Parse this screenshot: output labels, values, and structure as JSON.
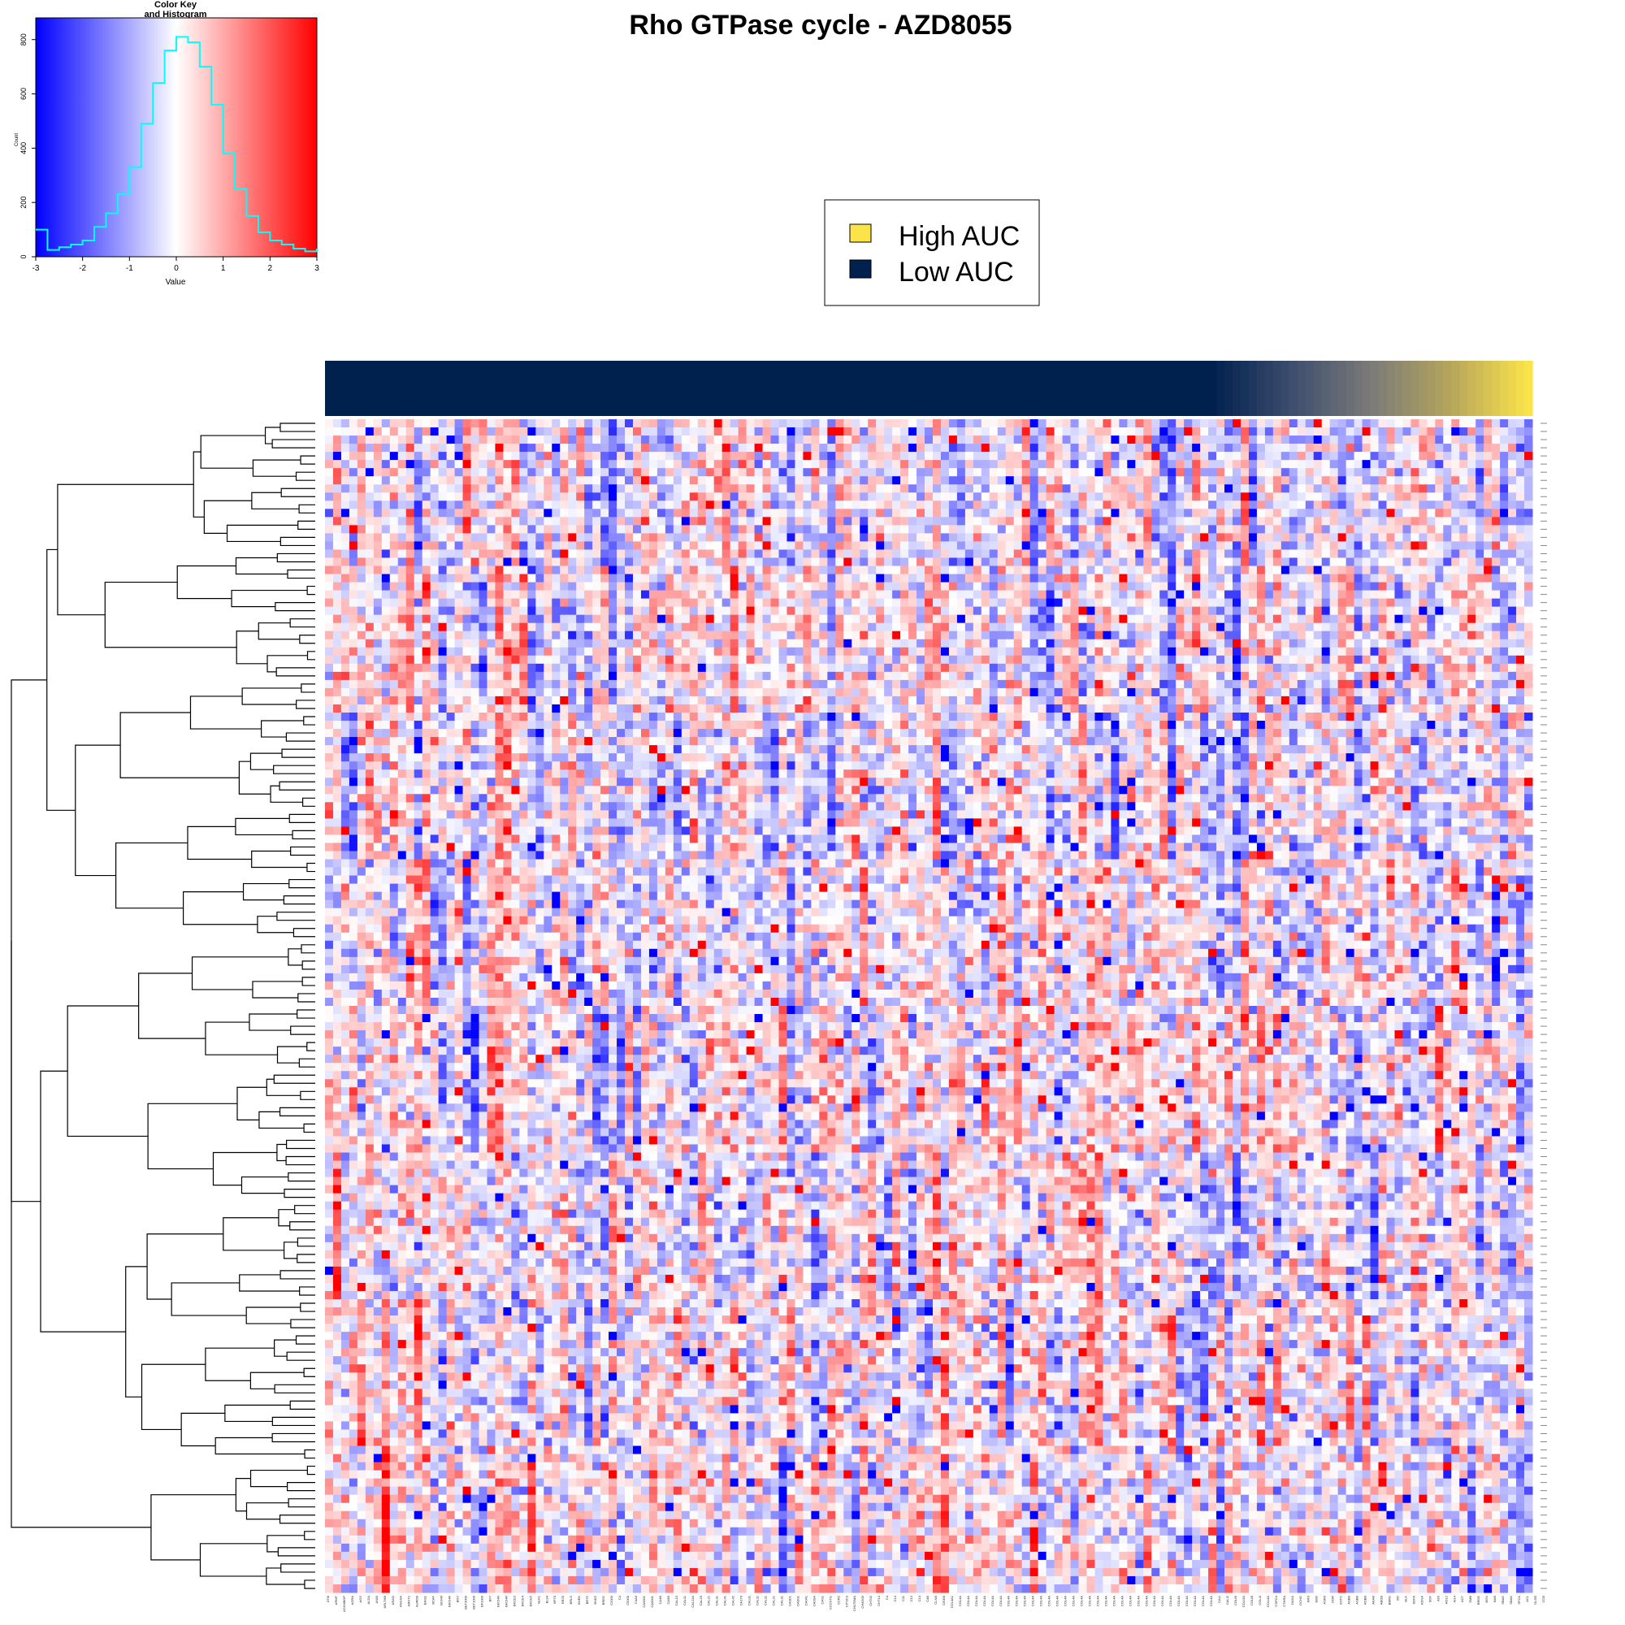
{
  "chart_data": {
    "type": "heatmap",
    "title": "Rho GTPase cycle - AZD8055",
    "color_key": {
      "title_line1": "Color Key",
      "title_line2": "and Histogram",
      "xlabel": "Value",
      "ylabel": "Count",
      "x_ticks": [
        "-3",
        "-2",
        "-1",
        "0",
        "1",
        "2",
        "3"
      ],
      "y_ticks": [
        "0",
        "200",
        "400",
        "600",
        "800"
      ],
      "xlim": [
        -3,
        3
      ],
      "ylim": [
        0,
        880
      ],
      "colors": {
        "low": "#0000ff",
        "mid": "#ffffff",
        "high": "#ff0000",
        "histogram": "#00ffff"
      },
      "histogram": {
        "x": [
          -3.0,
          -2.75,
          -2.5,
          -2.25,
          -2.0,
          -1.75,
          -1.5,
          -1.25,
          -1.0,
          -0.75,
          -0.5,
          -0.25,
          0.0,
          0.25,
          0.5,
          0.75,
          1.0,
          1.25,
          1.5,
          1.75,
          2.0,
          2.25,
          2.5,
          2.75,
          3.0
        ],
        "counts": [
          100,
          25,
          35,
          45,
          60,
          110,
          160,
          230,
          330,
          490,
          640,
          760,
          810,
          790,
          700,
          560,
          380,
          250,
          150,
          90,
          60,
          45,
          30,
          20,
          30
        ]
      }
    },
    "legend": {
      "placement": "top-center",
      "entries": [
        {
          "label": "High AUC",
          "color": "#fbe34a"
        },
        {
          "label": "Low AUC",
          "color": "#00204d"
        }
      ]
    },
    "annotation_bar": {
      "n_low_blocks": 110,
      "gradient_colors": [
        "#00204d",
        "#3d4d6e",
        "#7a7a78",
        "#b5a45c",
        "#fbe34a"
      ]
    },
    "heatmap": {
      "n_rows": 144,
      "n_cols": 149,
      "value_range": [
        -3,
        3
      ],
      "seed": 8055,
      "row_dendrogram": true,
      "col_labels": [
        "ATM",
        "ARMT",
        "ACKMBOP",
        "AGRA",
        "AGS",
        "ALDA",
        "ANBI",
        "ARLTHB",
        "ARAO",
        "ANGSA",
        "ARNT1",
        "AURDB",
        "BAGE",
        "BCAF",
        "BCHM",
        "BKCHR",
        "BDV",
        "BET3000",
        "BET1000",
        "BF1000",
        "BF7",
        "BKCHR",
        "BKCHR",
        "BKCE3",
        "BKCE4",
        "BKCE5",
        "BLK1",
        "BL94",
        "BP70",
        "BR20",
        "BRLS",
        "BNEK",
        "BRTZ",
        "BNEZ",
        "BREG",
        "C2000",
        "C4",
        "C5000",
        "C4A0",
        "CA0001",
        "CA5001",
        "CA4B",
        "CA5B",
        "CAL10",
        "CAL11",
        "CAL11A",
        "CAL20",
        "CAL21",
        "CAL31",
        "CAL41",
        "CAL42",
        "CA170",
        "CAL01",
        "CAL11",
        "CAL11",
        "CAL21",
        "CAL31",
        "CA0D1",
        "CAD01",
        "CA041",
        "CA0SA",
        "CAS1",
        "CCCNTG",
        "CCR2",
        "CITSC3",
        "CH17DMA",
        "CH4G09",
        "CHT02",
        "CHT14",
        "C4",
        "C14",
        "C11",
        "C13",
        "C14",
        "C4B",
        "CLNB",
        "C5000",
        "COL4A1",
        "COL4A",
        "COL4A",
        "COL4A",
        "COL4A",
        "COL4A",
        "COL4A",
        "COL4A",
        "COL4A",
        "COL4A",
        "COL4A",
        "COL4A",
        "COL4A",
        "COL4A",
        "COL4A",
        "COL4A",
        "COL4A",
        "COL4A",
        "COL4A",
        "COL4A",
        "COL4A",
        "COL4A",
        "COL4A",
        "COL4A",
        "COL4A",
        "COL4A",
        "COL4A",
        "COL4A",
        "COL4A",
        "COL4A",
        "COL4A",
        "COL4A",
        "COL4A",
        "CALI",
        "CALI2",
        "COLIB",
        "COLI3A",
        "COLIB",
        "COLI4",
        "COLI4A",
        "CSPG4",
        "CTHRA",
        "DAXA",
        "DCHG",
        "KRS",
        "EBO",
        "ASR0",
        "DOR",
        "ESTC",
        "ASBB",
        "ASBB",
        "AOBB",
        "AKAB",
        "ABOB",
        "BBRG",
        "BO",
        "BLK",
        "SDFA",
        "KDNA",
        "SOF",
        "AOI",
        "AO12",
        "AI14",
        "ACT",
        "SMB",
        "BRDE",
        "BGN",
        "BAB",
        "SBAK",
        "SBAK",
        "SFCA",
        "ACL",
        "GLSR",
        "CCB"
      ]
    }
  }
}
